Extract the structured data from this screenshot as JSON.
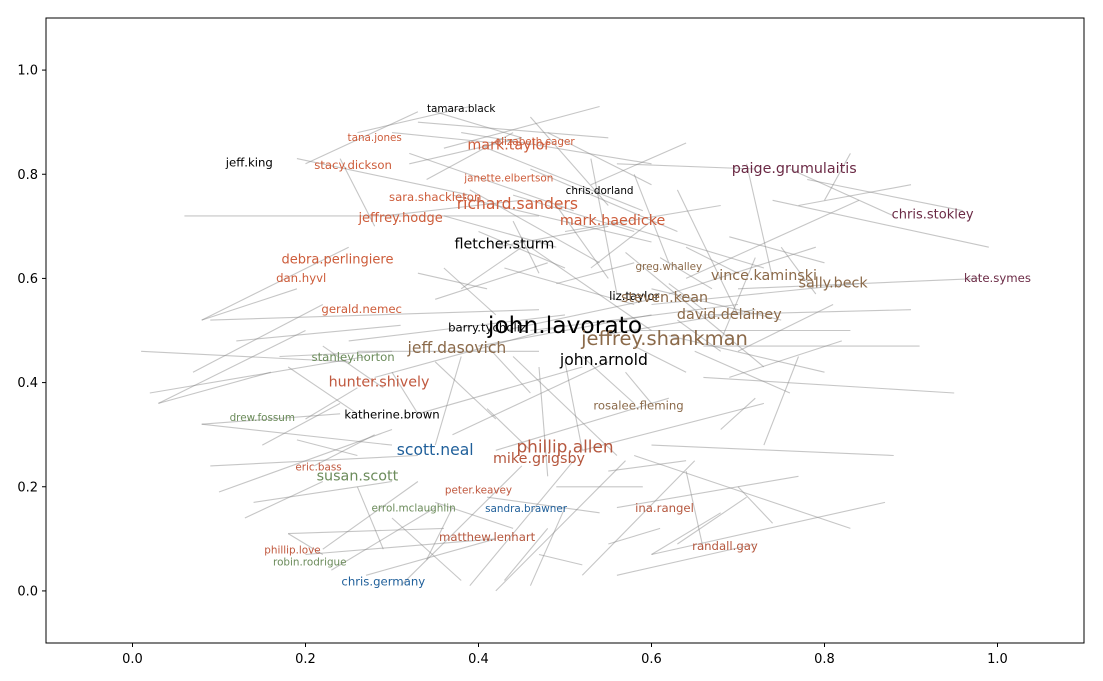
{
  "chart_data": {
    "type": "network",
    "xlim": [
      -0.1,
      1.1
    ],
    "ylim": [
      -0.1,
      1.1
    ],
    "x_ticks": [
      "0.0",
      "0.2",
      "0.4",
      "0.6",
      "0.8",
      "1.0"
    ],
    "y_ticks": [
      "0.0",
      "0.2",
      "0.4",
      "0.6",
      "0.8",
      "1.0"
    ],
    "grid": false,
    "edge_color": "#808080",
    "nodes": [
      {
        "label": "tamara.black",
        "x": 0.38,
        "y": 0.925,
        "size": 8,
        "color": "#000000"
      },
      {
        "label": "tana.jones",
        "x": 0.28,
        "y": 0.87,
        "size": 8,
        "color": "#cd5c3a"
      },
      {
        "label": "mark.taylor",
        "x": 0.435,
        "y": 0.855,
        "size": 11,
        "color": "#cd5c3a"
      },
      {
        "label": "elizabeth.sager",
        "x": 0.465,
        "y": 0.862,
        "size": 8,
        "color": "#cd5c3a"
      },
      {
        "label": "jeff.king",
        "x": 0.135,
        "y": 0.822,
        "size": 9,
        "color": "#000000"
      },
      {
        "label": "stacy.dickson",
        "x": 0.255,
        "y": 0.817,
        "size": 9,
        "color": "#cd5c3a"
      },
      {
        "label": "janette.elbertson",
        "x": 0.435,
        "y": 0.792,
        "size": 8,
        "color": "#cd5c3a"
      },
      {
        "label": "chris.dorland",
        "x": 0.54,
        "y": 0.768,
        "size": 8,
        "color": "#000000"
      },
      {
        "label": "paige.grumulaitis",
        "x": 0.765,
        "y": 0.81,
        "size": 11,
        "color": "#6b2a45"
      },
      {
        "label": "sara.shackleton",
        "x": 0.35,
        "y": 0.755,
        "size": 9,
        "color": "#cd5c3a"
      },
      {
        "label": "richard.sanders",
        "x": 0.445,
        "y": 0.742,
        "size": 12,
        "color": "#cd5c3a"
      },
      {
        "label": "jeffrey.hodge",
        "x": 0.31,
        "y": 0.715,
        "size": 10,
        "color": "#cd5c3a"
      },
      {
        "label": "mark.haedicke",
        "x": 0.555,
        "y": 0.71,
        "size": 11,
        "color": "#cd5c3a"
      },
      {
        "label": "chris.stokley",
        "x": 0.925,
        "y": 0.722,
        "size": 10,
        "color": "#6b2a45"
      },
      {
        "label": "fletcher.sturm",
        "x": 0.43,
        "y": 0.665,
        "size": 11,
        "color": "#000000"
      },
      {
        "label": "debra.perlingiere",
        "x": 0.237,
        "y": 0.635,
        "size": 10,
        "color": "#cd5c3a"
      },
      {
        "label": "greg.whalley",
        "x": 0.62,
        "y": 0.622,
        "size": 8,
        "color": "#8b6a4a"
      },
      {
        "label": "vince.kaminski",
        "x": 0.73,
        "y": 0.605,
        "size": 11,
        "color": "#8b6a4a"
      },
      {
        "label": "dan.hyvl",
        "x": 0.195,
        "y": 0.6,
        "size": 9,
        "color": "#cd5c3a"
      },
      {
        "label": "kate.symes",
        "x": 1.0,
        "y": 0.6,
        "size": 9,
        "color": "#6b2a45"
      },
      {
        "label": "sally.beck",
        "x": 0.81,
        "y": 0.59,
        "size": 11,
        "color": "#8b6a4a"
      },
      {
        "label": "liz.taylor",
        "x": 0.58,
        "y": 0.565,
        "size": 9,
        "color": "#000000"
      },
      {
        "label": "steven.kean",
        "x": 0.615,
        "y": 0.562,
        "size": 11,
        "color": "#8b6a4a"
      },
      {
        "label": "gerald.nemec",
        "x": 0.265,
        "y": 0.54,
        "size": 9,
        "color": "#cd5c3a"
      },
      {
        "label": "david.delainey",
        "x": 0.69,
        "y": 0.53,
        "size": 11,
        "color": "#8b6a4a"
      },
      {
        "label": "john.lavorato",
        "x": 0.5,
        "y": 0.508,
        "size": 18,
        "color": "#000000"
      },
      {
        "label": "barry.tycholiz",
        "x": 0.41,
        "y": 0.505,
        "size": 9,
        "color": "#000000"
      },
      {
        "label": "jeffrey.shankman",
        "x": 0.615,
        "y": 0.483,
        "size": 15,
        "color": "#8b6a4a"
      },
      {
        "label": "jeff.dasovich",
        "x": 0.375,
        "y": 0.465,
        "size": 12,
        "color": "#8b6a4a"
      },
      {
        "label": "stanley.horton",
        "x": 0.255,
        "y": 0.448,
        "size": 9,
        "color": "#6b8b5a"
      },
      {
        "label": "john.arnold",
        "x": 0.545,
        "y": 0.442,
        "size": 12,
        "color": "#000000"
      },
      {
        "label": "hunter.shively",
        "x": 0.285,
        "y": 0.4,
        "size": 11,
        "color": "#c0583e"
      },
      {
        "label": "rosalee.fleming",
        "x": 0.585,
        "y": 0.355,
        "size": 9,
        "color": "#8b6a4a"
      },
      {
        "label": "drew.fossum",
        "x": 0.15,
        "y": 0.332,
        "size": 8,
        "color": "#6b8b5a"
      },
      {
        "label": "katherine.brown",
        "x": 0.3,
        "y": 0.338,
        "size": 9,
        "color": "#000000"
      },
      {
        "label": "scott.neal",
        "x": 0.35,
        "y": 0.27,
        "size": 12,
        "color": "#1f5f9a"
      },
      {
        "label": "phillip.allen",
        "x": 0.5,
        "y": 0.275,
        "size": 13,
        "color": "#b5573e"
      },
      {
        "label": "mike.grigsby",
        "x": 0.47,
        "y": 0.253,
        "size": 11,
        "color": "#b5573e"
      },
      {
        "label": "eric.bass",
        "x": 0.215,
        "y": 0.237,
        "size": 8,
        "color": "#c0583e"
      },
      {
        "label": "susan.scott",
        "x": 0.26,
        "y": 0.22,
        "size": 11,
        "color": "#6b8b5a"
      },
      {
        "label": "peter.keavey",
        "x": 0.4,
        "y": 0.193,
        "size": 8,
        "color": "#c0583e"
      },
      {
        "label": "errol.mclaughlin",
        "x": 0.325,
        "y": 0.158,
        "size": 8,
        "color": "#6b8b5a"
      },
      {
        "label": "sandra.brawner",
        "x": 0.455,
        "y": 0.157,
        "size": 8,
        "color": "#1f5f9a"
      },
      {
        "label": "ina.rangel",
        "x": 0.615,
        "y": 0.158,
        "size": 9,
        "color": "#b5573e"
      },
      {
        "label": "matthew.lenhart",
        "x": 0.41,
        "y": 0.103,
        "size": 9,
        "color": "#b5573e"
      },
      {
        "label": "phillip.love",
        "x": 0.185,
        "y": 0.078,
        "size": 8,
        "color": "#c0583e"
      },
      {
        "label": "randall.gay",
        "x": 0.685,
        "y": 0.085,
        "size": 9,
        "color": "#b5573e"
      },
      {
        "label": "robin.rodrigue",
        "x": 0.205,
        "y": 0.055,
        "size": 8,
        "color": "#6b8b5a"
      },
      {
        "label": "chris.germany",
        "x": 0.29,
        "y": 0.017,
        "size": 9,
        "color": "#1f5f9a"
      }
    ],
    "edges": [
      [
        0.35,
        0.92,
        0.45,
        0.87
      ],
      [
        0.26,
        0.88,
        0.39,
        0.93
      ],
      [
        0.3,
        0.88,
        0.42,
        0.86
      ],
      [
        0.33,
        0.9,
        0.55,
        0.87
      ],
      [
        0.38,
        0.88,
        0.6,
        0.82
      ],
      [
        0.32,
        0.82,
        0.45,
        0.87
      ],
      [
        0.2,
        0.82,
        0.33,
        0.92
      ],
      [
        0.19,
        0.83,
        0.39,
        0.76
      ],
      [
        0.24,
        0.83,
        0.28,
        0.7
      ],
      [
        0.32,
        0.84,
        0.51,
        0.73
      ],
      [
        0.41,
        0.85,
        0.59,
        0.73
      ],
      [
        0.36,
        0.85,
        0.54,
        0.93
      ],
      [
        0.46,
        0.91,
        0.55,
        0.74
      ],
      [
        0.46,
        0.81,
        0.63,
        0.69
      ],
      [
        0.39,
        0.77,
        0.54,
        0.63
      ],
      [
        0.37,
        0.76,
        0.6,
        0.67
      ],
      [
        0.29,
        0.72,
        0.45,
        0.75
      ],
      [
        0.06,
        0.72,
        0.47,
        0.72
      ],
      [
        0.08,
        0.52,
        0.25,
        0.66
      ],
      [
        0.08,
        0.52,
        0.19,
        0.58
      ],
      [
        0.09,
        0.52,
        0.47,
        0.54
      ],
      [
        0.07,
        0.42,
        0.22,
        0.55
      ],
      [
        0.02,
        0.38,
        0.27,
        0.45
      ],
      [
        0.03,
        0.36,
        0.2,
        0.5
      ],
      [
        0.03,
        0.36,
        0.16,
        0.42
      ],
      [
        0.08,
        0.32,
        0.24,
        0.34
      ],
      [
        0.08,
        0.32,
        0.3,
        0.28
      ],
      [
        0.09,
        0.24,
        0.33,
        0.26
      ],
      [
        0.1,
        0.19,
        0.3,
        0.31
      ],
      [
        0.14,
        0.17,
        0.3,
        0.21
      ],
      [
        0.18,
        0.11,
        0.36,
        0.12
      ],
      [
        0.18,
        0.11,
        0.22,
        0.07
      ],
      [
        0.2,
        0.07,
        0.42,
        0.1
      ],
      [
        0.22,
        0.08,
        0.33,
        0.21
      ],
      [
        0.23,
        0.04,
        0.35,
        0.16
      ],
      [
        0.27,
        0.03,
        0.42,
        0.1
      ],
      [
        0.31,
        0.01,
        0.45,
        0.24
      ],
      [
        0.39,
        0.01,
        0.51,
        0.25
      ],
      [
        0.42,
        0.0,
        0.57,
        0.25
      ],
      [
        0.46,
        0.01,
        0.5,
        0.16
      ],
      [
        0.52,
        0.03,
        0.65,
        0.25
      ],
      [
        0.56,
        0.03,
        0.72,
        0.09
      ],
      [
        0.6,
        0.07,
        0.87,
        0.17
      ],
      [
        0.6,
        0.07,
        0.68,
        0.15
      ],
      [
        0.63,
        0.09,
        0.71,
        0.18
      ],
      [
        0.56,
        0.16,
        0.77,
        0.22
      ],
      [
        0.58,
        0.26,
        0.83,
        0.12
      ],
      [
        0.6,
        0.28,
        0.88,
        0.26
      ],
      [
        0.52,
        0.27,
        0.73,
        0.36
      ],
      [
        0.42,
        0.27,
        0.62,
        0.37
      ],
      [
        0.37,
        0.3,
        0.55,
        0.44
      ],
      [
        0.33,
        0.34,
        0.52,
        0.43
      ],
      [
        0.28,
        0.41,
        0.5,
        0.51
      ],
      [
        0.26,
        0.46,
        0.47,
        0.46
      ],
      [
        0.25,
        0.48,
        0.5,
        0.53
      ],
      [
        0.4,
        0.47,
        0.6,
        0.53
      ],
      [
        0.43,
        0.5,
        0.6,
        0.56
      ],
      [
        0.46,
        0.5,
        0.7,
        0.55
      ],
      [
        0.54,
        0.49,
        0.72,
        0.54
      ],
      [
        0.57,
        0.5,
        0.83,
        0.5
      ],
      [
        0.6,
        0.55,
        0.84,
        0.59
      ],
      [
        0.62,
        0.57,
        0.79,
        0.66
      ],
      [
        0.64,
        0.6,
        0.84,
        0.75
      ],
      [
        0.66,
        0.53,
        0.9,
        0.54
      ],
      [
        0.7,
        0.58,
        0.98,
        0.6
      ],
      [
        0.76,
        0.81,
        0.88,
        0.72
      ],
      [
        0.78,
        0.79,
        0.96,
        0.73
      ],
      [
        0.74,
        0.75,
        0.99,
        0.66
      ],
      [
        0.77,
        0.74,
        0.9,
        0.78
      ],
      [
        0.8,
        0.75,
        0.83,
        0.84
      ],
      [
        0.71,
        0.82,
        0.74,
        0.6
      ],
      [
        0.63,
        0.77,
        0.7,
        0.53
      ],
      [
        0.58,
        0.8,
        0.62,
        0.63
      ],
      [
        0.53,
        0.83,
        0.56,
        0.57
      ],
      [
        0.49,
        0.74,
        0.55,
        0.6
      ],
      [
        0.46,
        0.66,
        0.6,
        0.5
      ],
      [
        0.43,
        0.62,
        0.58,
        0.55
      ],
      [
        0.42,
        0.66,
        0.55,
        0.7
      ],
      [
        0.5,
        0.69,
        0.68,
        0.74
      ],
      [
        0.55,
        0.71,
        0.73,
        0.62
      ],
      [
        0.57,
        0.65,
        0.73,
        0.43
      ],
      [
        0.6,
        0.58,
        0.75,
        0.52
      ],
      [
        0.62,
        0.49,
        0.8,
        0.42
      ],
      [
        0.65,
        0.46,
        0.76,
        0.38
      ],
      [
        0.66,
        0.41,
        0.95,
        0.38
      ],
      [
        0.66,
        0.47,
        0.91,
        0.47
      ],
      [
        0.69,
        0.41,
        0.82,
        0.48
      ],
      [
        0.57,
        0.42,
        0.6,
        0.36
      ],
      [
        0.52,
        0.45,
        0.58,
        0.36
      ],
      [
        0.5,
        0.44,
        0.52,
        0.27
      ],
      [
        0.47,
        0.43,
        0.48,
        0.22
      ],
      [
        0.44,
        0.45,
        0.56,
        0.26
      ],
      [
        0.41,
        0.47,
        0.46,
        0.38
      ],
      [
        0.38,
        0.45,
        0.35,
        0.28
      ],
      [
        0.35,
        0.44,
        0.42,
        0.33
      ],
      [
        0.3,
        0.42,
        0.33,
        0.34
      ],
      [
        0.26,
        0.39,
        0.2,
        0.33
      ],
      [
        0.22,
        0.47,
        0.29,
        0.39
      ],
      [
        0.17,
        0.45,
        0.3,
        0.46
      ],
      [
        0.33,
        0.61,
        0.41,
        0.58
      ],
      [
        0.35,
        0.56,
        0.48,
        0.63
      ],
      [
        0.38,
        0.58,
        0.45,
        0.66
      ],
      [
        0.49,
        0.59,
        0.58,
        0.63
      ],
      [
        0.53,
        0.62,
        0.6,
        0.71
      ],
      [
        0.44,
        0.76,
        0.58,
        0.69
      ],
      [
        0.36,
        0.72,
        0.49,
        0.66
      ],
      [
        0.34,
        0.79,
        0.44,
        0.88
      ],
      [
        0.48,
        0.88,
        0.6,
        0.78
      ],
      [
        0.53,
        0.78,
        0.64,
        0.86
      ],
      [
        0.56,
        0.82,
        0.72,
        0.81
      ],
      [
        0.55,
        0.23,
        0.64,
        0.25
      ],
      [
        0.49,
        0.2,
        0.59,
        0.2
      ],
      [
        0.41,
        0.18,
        0.54,
        0.15
      ],
      [
        0.35,
        0.17,
        0.44,
        0.12
      ],
      [
        0.3,
        0.14,
        0.38,
        0.02
      ],
      [
        0.26,
        0.2,
        0.29,
        0.08
      ],
      [
        0.21,
        0.24,
        0.28,
        0.3
      ],
      [
        0.19,
        0.29,
        0.26,
        0.26
      ],
      [
        0.15,
        0.28,
        0.24,
        0.36
      ],
      [
        0.13,
        0.14,
        0.22,
        0.21
      ],
      [
        0.64,
        0.23,
        0.66,
        0.08
      ],
      [
        0.7,
        0.2,
        0.74,
        0.13
      ],
      [
        0.68,
        0.31,
        0.72,
        0.37
      ],
      [
        0.73,
        0.28,
        0.77,
        0.45
      ],
      [
        0.55,
        0.09,
        0.61,
        0.12
      ],
      [
        0.47,
        0.07,
        0.52,
        0.05
      ],
      [
        0.43,
        0.02,
        0.48,
        0.12
      ],
      [
        0.34,
        0.06,
        0.37,
        0.16
      ],
      [
        0.01,
        0.46,
        0.25,
        0.44
      ],
      [
        0.12,
        0.48,
        0.31,
        0.51
      ],
      [
        0.18,
        0.43,
        0.26,
        0.34
      ],
      [
        0.41,
        0.35,
        0.46,
        0.27
      ],
      [
        0.36,
        0.62,
        0.42,
        0.53
      ],
      [
        0.4,
        0.69,
        0.5,
        0.62
      ],
      [
        0.44,
        0.71,
        0.47,
        0.61
      ],
      [
        0.61,
        0.64,
        0.67,
        0.58
      ],
      [
        0.64,
        0.66,
        0.7,
        0.61
      ],
      [
        0.69,
        0.68,
        0.8,
        0.63
      ],
      [
        0.75,
        0.66,
        0.79,
        0.57
      ],
      [
        0.63,
        0.52,
        0.68,
        0.46
      ],
      [
        0.58,
        0.47,
        0.64,
        0.42
      ],
      [
        0.7,
        0.46,
        0.81,
        0.55
      ],
      [
        0.68,
        0.48,
        0.72,
        0.64
      ],
      [
        0.62,
        0.59,
        0.66,
        0.54
      ]
    ]
  }
}
